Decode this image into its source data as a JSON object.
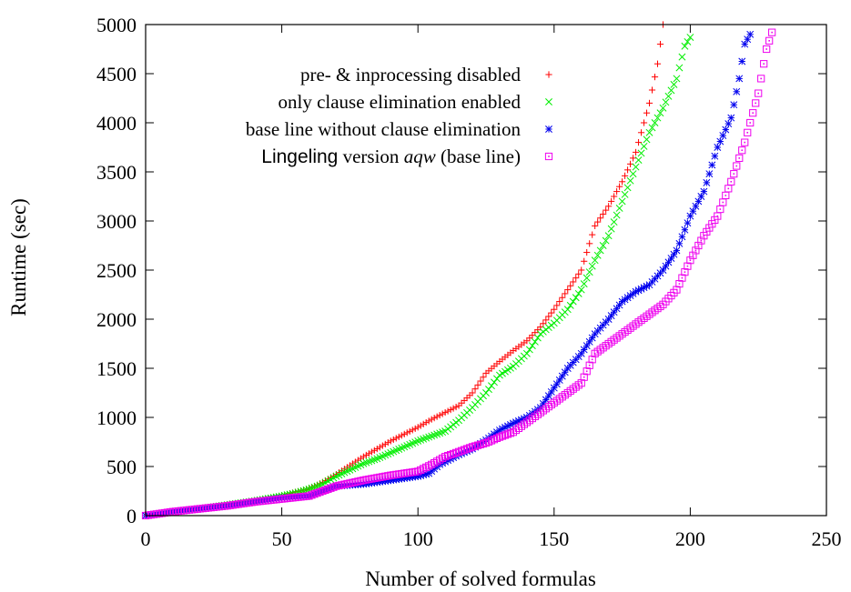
{
  "chart_data": {
    "type": "scatter",
    "xlabel": "Number of solved formulas",
    "ylabel": "Runtime (sec)",
    "xlim": [
      0,
      250
    ],
    "ylim": [
      0,
      5000
    ],
    "xticks": [
      0,
      50,
      100,
      150,
      200,
      250
    ],
    "yticks": [
      0,
      500,
      1000,
      1500,
      2000,
      2500,
      3000,
      3500,
      4000,
      4500,
      5000
    ],
    "grid": false,
    "legend_position": "top-right",
    "legend_labels": {
      "s0": "pre- & inprocessing disabled",
      "s1": "only clause elimination enabled",
      "s2": "base line without clause elimination",
      "s3_sans": "Lingeling",
      "s3_a": " version ",
      "s3_italic": "aqw",
      "s3_b": " (base line)"
    },
    "series": [
      {
        "name": "pre- & inprocessing disabled",
        "marker": "plus",
        "color": "#ff0000",
        "anchors": [
          [
            0,
            0
          ],
          [
            10,
            40
          ],
          [
            20,
            70
          ],
          [
            30,
            110
          ],
          [
            40,
            150
          ],
          [
            50,
            200
          ],
          [
            55,
            240
          ],
          [
            60,
            270
          ],
          [
            65,
            340
          ],
          [
            70,
            420
          ],
          [
            80,
            600
          ],
          [
            85,
            680
          ],
          [
            90,
            760
          ],
          [
            95,
            830
          ],
          [
            100,
            900
          ],
          [
            105,
            980
          ],
          [
            110,
            1050
          ],
          [
            115,
            1120
          ],
          [
            120,
            1250
          ],
          [
            125,
            1450
          ],
          [
            130,
            1570
          ],
          [
            135,
            1680
          ],
          [
            140,
            1780
          ],
          [
            145,
            1920
          ],
          [
            150,
            2100
          ],
          [
            155,
            2300
          ],
          [
            160,
            2500
          ],
          [
            165,
            2950
          ],
          [
            170,
            3150
          ],
          [
            175,
            3400
          ],
          [
            180,
            3700
          ],
          [
            185,
            4200
          ],
          [
            188,
            4600
          ],
          [
            190,
            5000
          ]
        ]
      },
      {
        "name": "only clause elimination enabled",
        "marker": "cross",
        "color": "#00ee00",
        "anchors": [
          [
            0,
            0
          ],
          [
            10,
            40
          ],
          [
            20,
            70
          ],
          [
            30,
            110
          ],
          [
            40,
            150
          ],
          [
            50,
            200
          ],
          [
            55,
            230
          ],
          [
            60,
            270
          ],
          [
            65,
            320
          ],
          [
            70,
            400
          ],
          [
            80,
            530
          ],
          [
            85,
            580
          ],
          [
            90,
            640
          ],
          [
            95,
            700
          ],
          [
            100,
            760
          ],
          [
            110,
            860
          ],
          [
            115,
            970
          ],
          [
            120,
            1100
          ],
          [
            125,
            1250
          ],
          [
            130,
            1430
          ],
          [
            135,
            1520
          ],
          [
            140,
            1650
          ],
          [
            145,
            1850
          ],
          [
            150,
            1960
          ],
          [
            155,
            2100
          ],
          [
            160,
            2300
          ],
          [
            165,
            2600
          ],
          [
            170,
            2850
          ],
          [
            175,
            3200
          ],
          [
            180,
            3550
          ],
          [
            185,
            3900
          ],
          [
            190,
            4150
          ],
          [
            195,
            4450
          ],
          [
            198,
            4780
          ],
          [
            200,
            4870
          ]
        ]
      },
      {
        "name": "base line without clause elimination",
        "marker": "star",
        "color": "#0000ee",
        "anchors": [
          [
            0,
            0
          ],
          [
            10,
            40
          ],
          [
            20,
            70
          ],
          [
            30,
            100
          ],
          [
            40,
            140
          ],
          [
            50,
            180
          ],
          [
            60,
            200
          ],
          [
            65,
            250
          ],
          [
            70,
            300
          ],
          [
            80,
            320
          ],
          [
            90,
            360
          ],
          [
            95,
            380
          ],
          [
            100,
            400
          ],
          [
            104,
            430
          ],
          [
            108,
            520
          ],
          [
            115,
            620
          ],
          [
            120,
            680
          ],
          [
            125,
            770
          ],
          [
            130,
            870
          ],
          [
            135,
            940
          ],
          [
            140,
            1000
          ],
          [
            145,
            1100
          ],
          [
            150,
            1300
          ],
          [
            155,
            1500
          ],
          [
            160,
            1650
          ],
          [
            165,
            1850
          ],
          [
            170,
            2000
          ],
          [
            175,
            2180
          ],
          [
            180,
            2280
          ],
          [
            185,
            2350
          ],
          [
            190,
            2500
          ],
          [
            195,
            2700
          ],
          [
            200,
            3050
          ],
          [
            205,
            3300
          ],
          [
            210,
            3750
          ],
          [
            215,
            4050
          ],
          [
            218,
            4450
          ],
          [
            220,
            4800
          ],
          [
            222,
            4900
          ]
        ]
      },
      {
        "name": "Lingeling version aqw (base line)",
        "marker": "boxdot",
        "color": "#ee00ee",
        "anchors": [
          [
            0,
            0
          ],
          [
            10,
            40
          ],
          [
            20,
            70
          ],
          [
            30,
            100
          ],
          [
            40,
            140
          ],
          [
            50,
            170
          ],
          [
            60,
            200
          ],
          [
            65,
            250
          ],
          [
            70,
            300
          ],
          [
            80,
            360
          ],
          [
            90,
            410
          ],
          [
            95,
            430
          ],
          [
            100,
            450
          ],
          [
            105,
            520
          ],
          [
            110,
            600
          ],
          [
            115,
            650
          ],
          [
            120,
            700
          ],
          [
            125,
            740
          ],
          [
            130,
            800
          ],
          [
            135,
            850
          ],
          [
            140,
            950
          ],
          [
            145,
            1050
          ],
          [
            150,
            1150
          ],
          [
            155,
            1250
          ],
          [
            160,
            1350
          ],
          [
            165,
            1650
          ],
          [
            170,
            1750
          ],
          [
            175,
            1850
          ],
          [
            180,
            1950
          ],
          [
            185,
            2050
          ],
          [
            190,
            2150
          ],
          [
            195,
            2300
          ],
          [
            200,
            2600
          ],
          [
            205,
            2850
          ],
          [
            210,
            3050
          ],
          [
            215,
            3400
          ],
          [
            220,
            3800
          ],
          [
            225,
            4300
          ],
          [
            228,
            4750
          ],
          [
            230,
            4920
          ]
        ]
      }
    ]
  }
}
